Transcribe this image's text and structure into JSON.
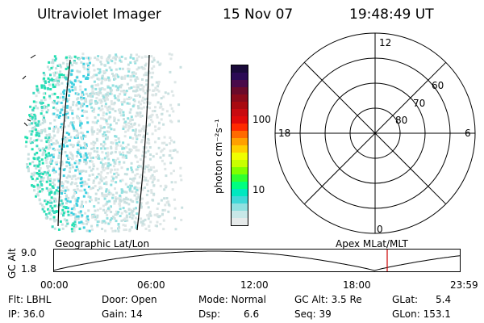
{
  "header": {
    "instrument": "Ultraviolet Imager",
    "date": "15 Nov 07",
    "time": "19:48:49 UT"
  },
  "colorbar": {
    "label": "photon cm⁻²s⁻¹",
    "ticks": [
      "100",
      "10"
    ],
    "colors": [
      "#1a0a3a",
      "#2b0a55",
      "#4a0a4a",
      "#6a0a2a",
      "#8a0a1a",
      "#a80a10",
      "#c80a10",
      "#e00a0a",
      "#ff2a00",
      "#ff6a00",
      "#ffa000",
      "#ffd000",
      "#f0ff00",
      "#c8ff00",
      "#80ff00",
      "#30ff30",
      "#00ff80",
      "#00e8c0",
      "#40d8d8",
      "#90e0e0",
      "#c8e8e8",
      "#e6eaea"
    ]
  },
  "polar": {
    "labels": {
      "top": "12",
      "left": "18",
      "right": "6",
      "bottom": "0"
    },
    "rings": [
      "60",
      "70",
      "80"
    ]
  },
  "timeline": {
    "left_caption": "Geographic Lat/Lon",
    "right_caption": "Apex MLat/MLT",
    "ylabel": "GC Alt",
    "y_ticks": [
      "9.0",
      "1.8"
    ],
    "x_ticks": [
      "00:00",
      "06:00",
      "12:00",
      "18:00",
      "23:59"
    ],
    "marker_color": "#cc0000"
  },
  "info": {
    "flt": "Flt: LBHL",
    "ip": "IP: 36.0",
    "door": "Door: Open",
    "gain": "Gain: 14",
    "mode": "Mode: Normal",
    "dsp_label": "Dsp:",
    "dsp_value": "6.6",
    "gc_alt": "GC Alt: 3.5 Re",
    "seq": "Seq: 39",
    "glat_label": "GLat:",
    "glat_value": "5.4",
    "glon": "GLon: 153.1"
  }
}
